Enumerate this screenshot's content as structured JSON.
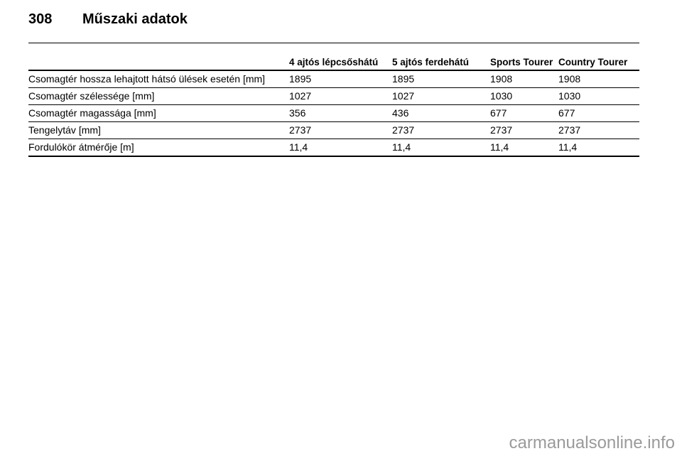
{
  "header": {
    "page_number": "308",
    "title": "Műszaki adatok"
  },
  "table": {
    "columns": [
      "4 ajtós lépcsőshátú",
      "5 ajtós ferdehátú",
      "Sports Tourer",
      "Country Tourer"
    ],
    "rows": [
      [
        "Csomagtér hossza lehajtott hátsó ülések esetén [mm]",
        "1895",
        "1895",
        "1908",
        "1908"
      ],
      [
        "Csomagtér szélessége [mm]",
        "1027",
        "1027",
        "1030",
        "1030"
      ],
      [
        "Csomagtér magassága [mm]",
        "356",
        "436",
        "677",
        "677"
      ],
      [
        "Tengelytáv [mm]",
        "2737",
        "2737",
        "2737",
        "2737"
      ],
      [
        "Fordulókör átmérője [m]",
        "11,4",
        "11,4",
        "11,4",
        "11,4"
      ]
    ]
  },
  "footer": {
    "watermark": "carmanualsonline.info"
  }
}
